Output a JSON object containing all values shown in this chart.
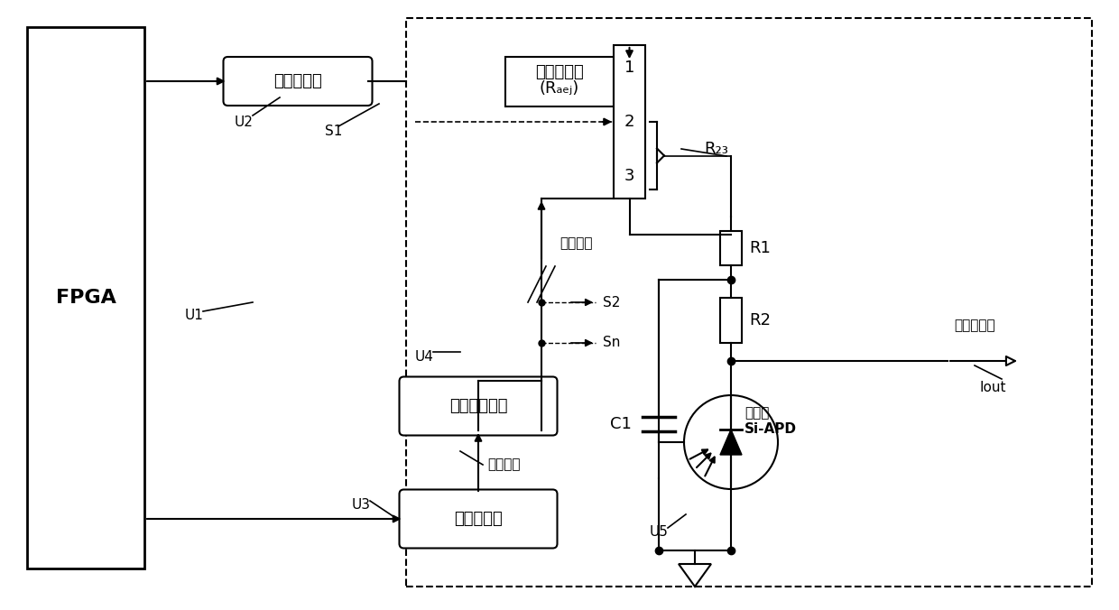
{
  "bg_color": "#ffffff",
  "line_color": "#000000",
  "font_size_main": 13,
  "font_size_label": 11,
  "font_size_small": 10,
  "fpga_label": "FPGA",
  "u1_label": "U1",
  "u2_label": "U2",
  "u3_label": "U3",
  "u4_label": "U4",
  "u5_label": "U5",
  "s1_label": "S1",
  "s2_label": "S2",
  "sn_label": "Sn",
  "wendu_label": "温度传感器",
  "huadian_label": "滑动变阵器",
  "radj_label": "(Rₐₑⱼ)",
  "gaoya_module_label": "高压电源模块",
  "shuzi_label": "数字电位计",
  "gaoya_output_label": "高压输徧",
  "diya_input_label": "低压输入",
  "r23_label": "R₂₃",
  "r1_label": "R1",
  "r2_label": "R2",
  "c1_label": "C1",
  "siapd_label": "Si-APD",
  "detector_label": "探测器",
  "iout_label": "Iout",
  "guangdianliu_label": "光电流输徧"
}
